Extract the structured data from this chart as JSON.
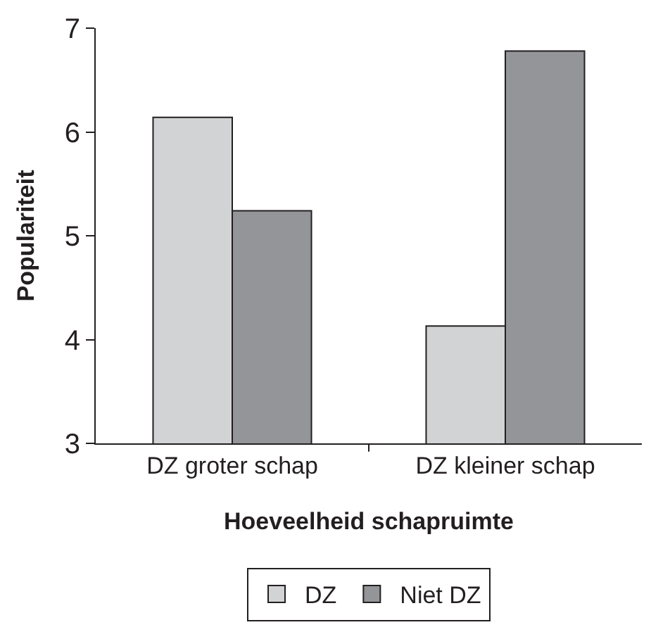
{
  "chart_data": {
    "type": "bar",
    "xlabel": "Hoeveelheid schapruimte",
    "ylabel": "Populariteit",
    "categories": [
      "DZ groter schap",
      "DZ kleiner schap"
    ],
    "series": [
      {
        "name": "DZ",
        "color": "#d1d3d4",
        "values": [
          6.14,
          4.13
        ]
      },
      {
        "name": "Niet DZ",
        "color": "#939598",
        "values": [
          5.24,
          6.78
        ]
      }
    ],
    "ylim": [
      3,
      7
    ],
    "yticks": [
      3,
      4,
      5,
      6,
      7
    ],
    "grid": false,
    "legend": "bottom"
  }
}
